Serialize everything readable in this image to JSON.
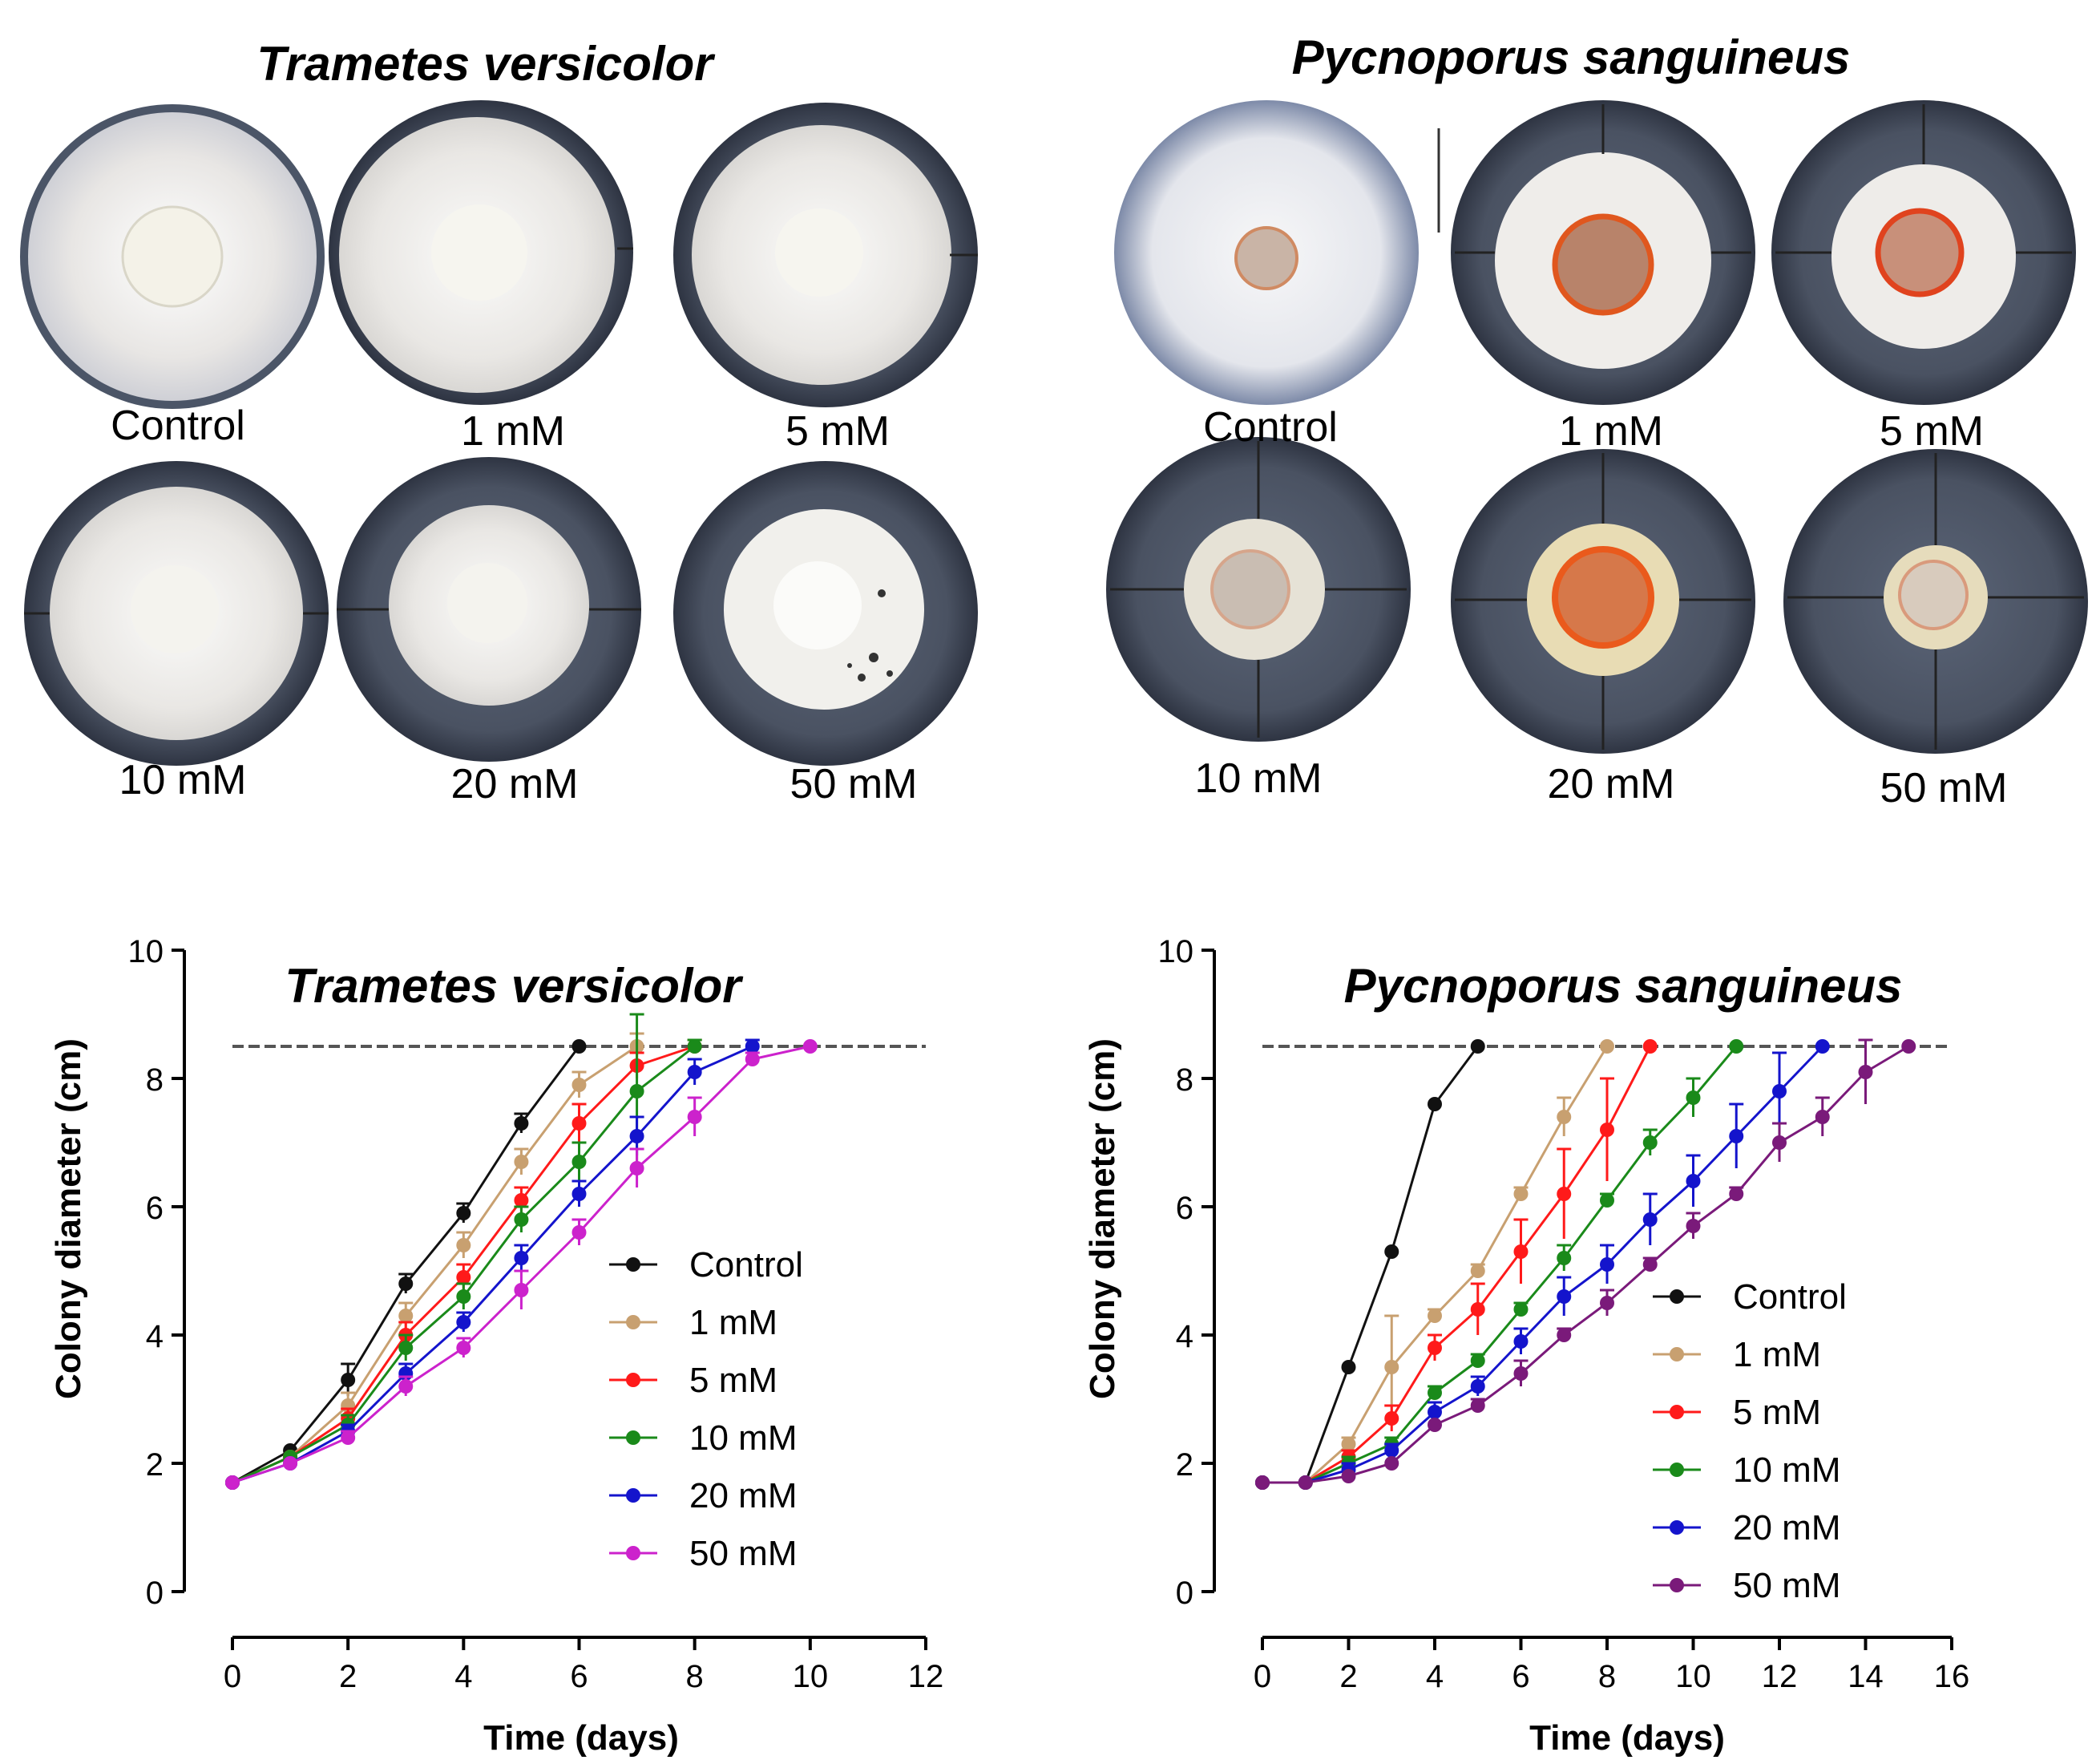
{
  "colors": {
    "control": "#111111",
    "c1mM": "#c8a070",
    "c5mM": "#ff1a1a",
    "c10mM": "#1a8a1a",
    "c20mM": "#1414cc",
    "c50mM_tv": "#cc22cc",
    "c50mM_ps": "#7a1a7a",
    "reference": "#555555"
  },
  "photos": {
    "left": {
      "title": "Trametes versicolor",
      "labels": [
        "Control",
        "1 mM",
        "5 mM",
        "10 mM",
        "20 mM",
        "50 mM"
      ]
    },
    "right": {
      "title": "Pycnoporus sanguineus",
      "labels": [
        "Control",
        "1 mM",
        "5 mM",
        "10 mM",
        "20 mM",
        "50 mM"
      ]
    }
  },
  "chart_data": [
    {
      "type": "line",
      "title": "Trametes versicolor",
      "xlabel": "Time (days)",
      "ylabel": "Colony diameter (cm)",
      "xlim": [
        0,
        12
      ],
      "ylim": [
        0,
        10
      ],
      "xticks": [
        0,
        2,
        4,
        6,
        8,
        10,
        12
      ],
      "yticks": [
        0,
        2,
        4,
        6,
        8,
        10
      ],
      "reference_line": 8.5,
      "legend": "center-right",
      "series": [
        {
          "name": "Control",
          "color": "control",
          "x": [
            0,
            1,
            2,
            3,
            4,
            5,
            6
          ],
          "values": [
            1.7,
            2.2,
            3.3,
            4.8,
            5.9,
            7.3,
            8.5
          ],
          "errors": [
            0.05,
            0.05,
            0.25,
            0.15,
            0.15,
            0.15,
            0.05
          ]
        },
        {
          "name": "1 mM",
          "color": "c1mM",
          "x": [
            0,
            1,
            2,
            3,
            4,
            5,
            6,
            7
          ],
          "values": [
            1.7,
            2.1,
            2.9,
            4.3,
            5.4,
            6.7,
            7.9,
            8.5
          ],
          "errors": [
            0.05,
            0.05,
            0.2,
            0.2,
            0.2,
            0.2,
            0.2,
            0.2
          ]
        },
        {
          "name": "5 mM",
          "color": "c5mM",
          "x": [
            0,
            1,
            2,
            3,
            4,
            5,
            6,
            7,
            8
          ],
          "values": [
            1.7,
            2.1,
            2.7,
            4.0,
            4.9,
            6.1,
            7.3,
            8.2,
            8.5
          ],
          "errors": [
            0.05,
            0.05,
            0.15,
            0.2,
            0.2,
            0.2,
            0.3,
            0.2,
            0.1
          ]
        },
        {
          "name": "10 mM",
          "color": "c10mM",
          "x": [
            0,
            1,
            2,
            3,
            4,
            5,
            6,
            7,
            8
          ],
          "values": [
            1.7,
            2.1,
            2.6,
            3.8,
            4.6,
            5.8,
            6.7,
            7.8,
            8.5
          ],
          "errors": [
            0.05,
            0.05,
            0.15,
            0.2,
            0.2,
            0.2,
            0.3,
            1.2,
            0.1
          ]
        },
        {
          "name": "20 mM",
          "color": "c20mM",
          "x": [
            0,
            1,
            2,
            3,
            4,
            5,
            6,
            7,
            8,
            9
          ],
          "values": [
            1.7,
            2.0,
            2.5,
            3.4,
            4.2,
            5.2,
            6.2,
            7.1,
            8.1,
            8.5
          ],
          "errors": [
            0.05,
            0.05,
            0.1,
            0.15,
            0.15,
            0.2,
            0.2,
            0.3,
            0.2,
            0.1
          ]
        },
        {
          "name": "50 mM",
          "color": "c50mM_tv",
          "x": [
            0,
            1,
            2,
            3,
            4,
            5,
            6,
            7,
            8,
            9,
            10
          ],
          "values": [
            1.7,
            2.0,
            2.4,
            3.2,
            3.8,
            4.7,
            5.6,
            6.6,
            7.4,
            8.3,
            8.5
          ],
          "errors": [
            0.05,
            0.05,
            0.1,
            0.15,
            0.15,
            0.3,
            0.2,
            0.3,
            0.3,
            0.1,
            0.05
          ]
        }
      ]
    },
    {
      "type": "line",
      "title": "Pycnoporus sanguineus",
      "xlabel": "Time (days)",
      "ylabel": "Colony diameter (cm)",
      "xlim": [
        0,
        16
      ],
      "ylim": [
        0,
        10
      ],
      "xticks": [
        0,
        2,
        4,
        6,
        8,
        10,
        12,
        14,
        16
      ],
      "yticks": [
        0,
        2,
        4,
        6,
        8,
        10
      ],
      "reference_line": 8.5,
      "legend": "lower-right",
      "series": [
        {
          "name": "Control",
          "color": "control",
          "x": [
            0,
            1,
            2,
            3,
            4,
            5
          ],
          "values": [
            1.7,
            1.7,
            3.5,
            5.3,
            7.6,
            8.5
          ],
          "errors": [
            0.05,
            0.05,
            0.05,
            0.05,
            0.05,
            0.05
          ]
        },
        {
          "name": "1 mM",
          "color": "c1mM",
          "x": [
            0,
            1,
            2,
            3,
            4,
            5,
            6,
            7,
            8
          ],
          "values": [
            1.7,
            1.7,
            2.3,
            3.5,
            4.3,
            5.0,
            6.2,
            7.4,
            8.5
          ],
          "errors": [
            0.05,
            0.05,
            0.1,
            0.8,
            0.1,
            0.1,
            0.1,
            0.3,
            0.05
          ]
        },
        {
          "name": "5 mM",
          "color": "c5mM",
          "x": [
            0,
            1,
            2,
            3,
            4,
            5,
            6,
            7,
            8,
            9
          ],
          "values": [
            1.7,
            1.7,
            2.1,
            2.7,
            3.8,
            4.4,
            5.3,
            6.2,
            7.2,
            8.5
          ],
          "errors": [
            0.05,
            0.05,
            0.1,
            0.2,
            0.2,
            0.4,
            0.5,
            0.7,
            0.8,
            0.05
          ]
        },
        {
          "name": "10 mM",
          "color": "c10mM",
          "x": [
            0,
            1,
            2,
            3,
            4,
            5,
            6,
            7,
            8,
            9,
            10,
            11
          ],
          "values": [
            1.7,
            1.7,
            2.0,
            2.3,
            3.1,
            3.6,
            4.4,
            5.2,
            6.1,
            7.0,
            7.7,
            8.5
          ],
          "errors": [
            0.05,
            0.05,
            0.1,
            0.1,
            0.1,
            0.1,
            0.1,
            0.2,
            0.1,
            0.2,
            0.3,
            0.05
          ]
        },
        {
          "name": "20 mM",
          "color": "c20mM",
          "x": [
            0,
            1,
            2,
            3,
            4,
            5,
            6,
            7,
            8,
            9,
            10,
            11,
            12,
            13
          ],
          "values": [
            1.7,
            1.7,
            1.9,
            2.2,
            2.8,
            3.2,
            3.9,
            4.6,
            5.1,
            5.8,
            6.4,
            7.1,
            7.8,
            8.5
          ],
          "errors": [
            0.05,
            0.05,
            0.1,
            0.1,
            0.15,
            0.15,
            0.2,
            0.3,
            0.3,
            0.4,
            0.4,
            0.5,
            0.6,
            0.05
          ]
        },
        {
          "name": "50 mM",
          "color": "c50mM_ps",
          "x": [
            0,
            1,
            2,
            3,
            4,
            5,
            6,
            7,
            8,
            9,
            10,
            11,
            12,
            13,
            14,
            15
          ],
          "values": [
            1.7,
            1.7,
            1.8,
            2.0,
            2.6,
            2.9,
            3.4,
            4.0,
            4.5,
            5.1,
            5.7,
            6.2,
            7.0,
            7.4,
            8.1,
            8.5
          ],
          "errors": [
            0.05,
            0.05,
            0.05,
            0.05,
            0.05,
            0.1,
            0.2,
            0.1,
            0.2,
            0.1,
            0.2,
            0.1,
            0.3,
            0.3,
            0.5,
            0.05
          ]
        }
      ]
    }
  ]
}
